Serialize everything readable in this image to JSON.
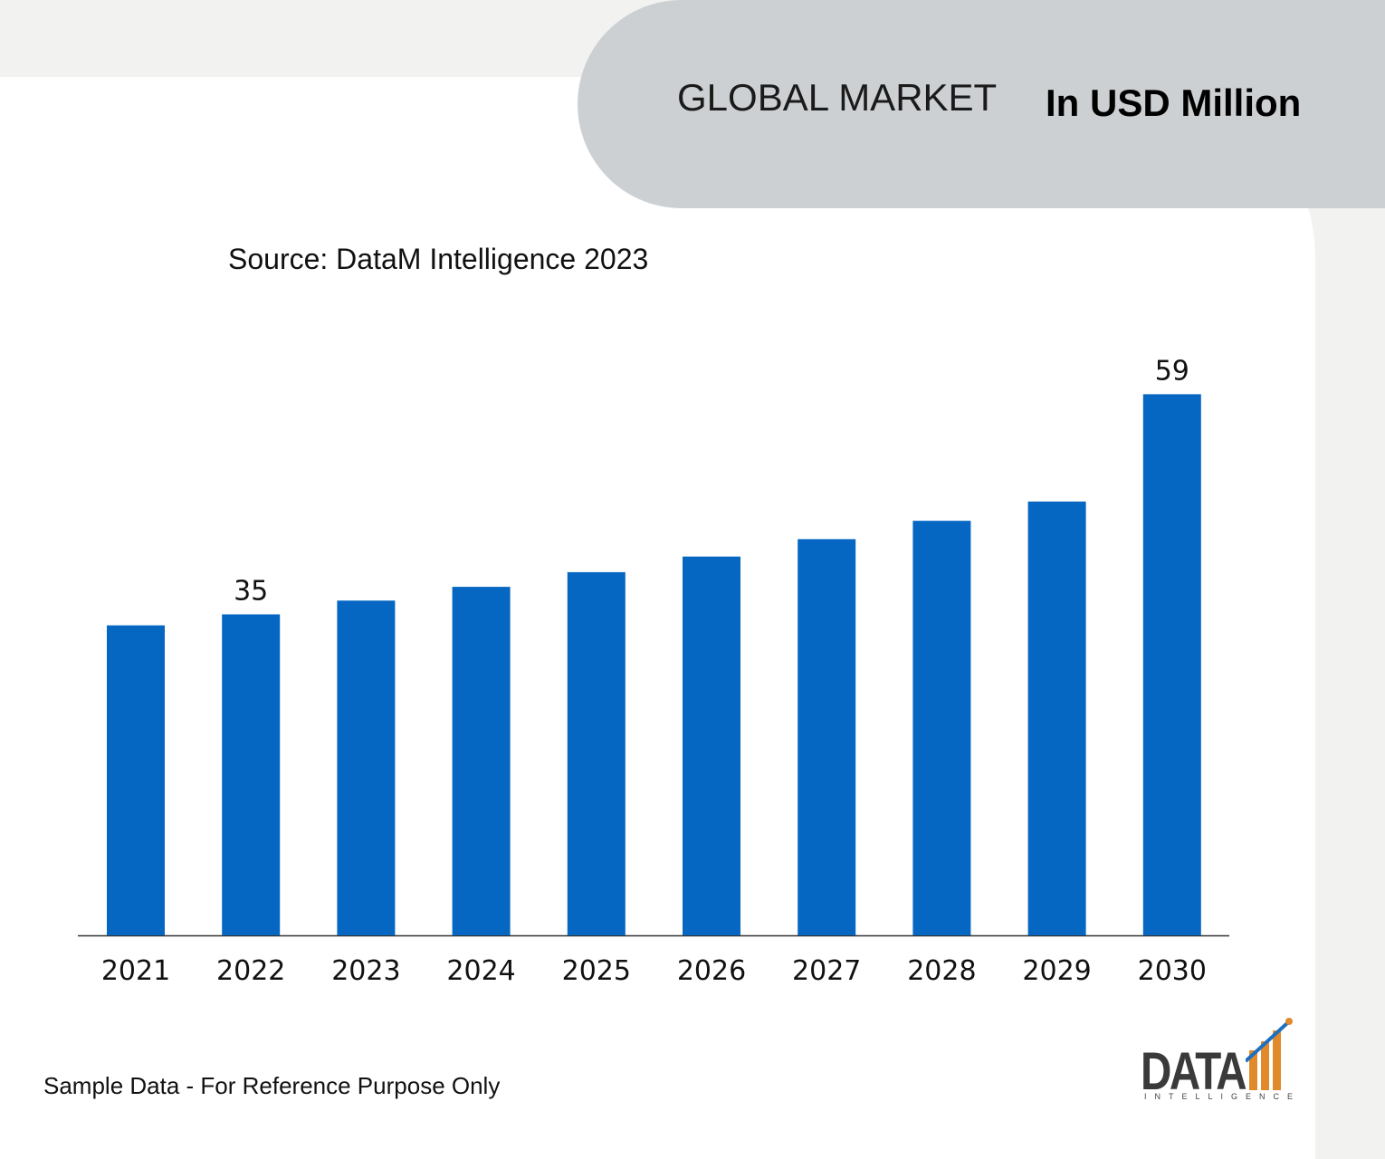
{
  "header": {
    "title": "GLOBAL MARKET",
    "unit": "In USD Million"
  },
  "source": "Source: DataM Intelligence 2023",
  "note": "Sample Data - For Reference Purpose Only",
  "logo": {
    "word": "DATA",
    "sub": "INTELLIGENCE"
  },
  "colors": {
    "bar": "#0567c2",
    "header": "#cdd0d3",
    "background": "#f2f2f1"
  },
  "chart_data": {
    "type": "bar",
    "categories": [
      "2021",
      "2022",
      "2023",
      "2024",
      "2025",
      "2026",
      "2027",
      "2028",
      "2029",
      "2030"
    ],
    "values": [
      33.8,
      35,
      36.5,
      38,
      39.6,
      41.3,
      43.2,
      45.2,
      47.3,
      59
    ],
    "data_labels": [
      "",
      "35",
      "",
      "",
      "",
      "",
      "",
      "",
      "",
      "59"
    ],
    "title": "",
    "xlabel": "",
    "ylabel": "",
    "ylim": [
      0,
      62
    ],
    "grid": false,
    "legend": "none"
  }
}
